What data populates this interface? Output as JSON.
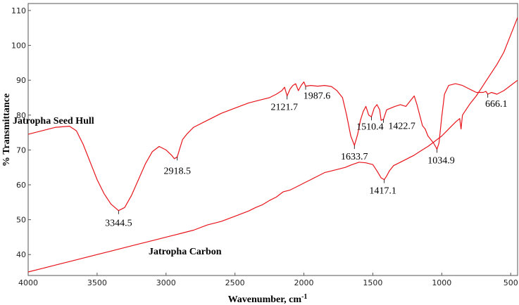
{
  "chart_data": {
    "type": "line",
    "title": "",
    "xlabel": "Wavenumber, cm",
    "xlabel_superscript": "-1",
    "ylabel": "% Transmittance",
    "xlim": [
      4000,
      450
    ],
    "ylim": [
      34,
      112
    ],
    "x_ticks": [
      "4000",
      "3500",
      "3000",
      "2500",
      "2000",
      "1500",
      "1000",
      "500"
    ],
    "y_ticks": [
      "40",
      "50",
      "60",
      "70",
      "80",
      "90",
      "100",
      "110"
    ],
    "grid": false,
    "legend": "none",
    "line_color": "#e8141b",
    "series": [
      {
        "name": "Jatropha Seed Hull",
        "x": [
          4000,
          3900,
          3800,
          3700,
          3650,
          3600,
          3550,
          3500,
          3450,
          3400,
          3370,
          3344.5,
          3300,
          3250,
          3200,
          3150,
          3100,
          3050,
          3000,
          2960,
          2940,
          2918.5,
          2900,
          2880,
          2850,
          2800,
          2700,
          2600,
          2500,
          2400,
          2300,
          2250,
          2200,
          2160,
          2140,
          2121.7,
          2100,
          2080,
          2060,
          2040,
          2020,
          2000,
          1987.6,
          1950,
          1900,
          1850,
          1800,
          1760,
          1720,
          1690,
          1660,
          1633.7,
          1610,
          1590,
          1570,
          1550,
          1530,
          1510.4,
          1490,
          1470,
          1450,
          1440,
          1422.7,
          1400,
          1370,
          1340,
          1300,
          1260,
          1230,
          1200,
          1180,
          1160,
          1140,
          1120,
          1100,
          1080,
          1060,
          1045,
          1034.9,
          1020,
          1000,
          980,
          950,
          900,
          850,
          800,
          750,
          700,
          680,
          666.1,
          640,
          600,
          550,
          500,
          450
        ],
        "y": [
          74.5,
          75.5,
          76.5,
          76.8,
          75.5,
          71.5,
          66.5,
          61.5,
          57.5,
          54.5,
          53.5,
          52.6,
          53.5,
          57,
          61.5,
          66,
          69.5,
          71,
          70,
          68.5,
          67.5,
          68,
          70.5,
          73,
          74.5,
          76.5,
          78.5,
          80.5,
          82,
          83.5,
          84.5,
          85,
          86,
          87,
          88,
          85.5,
          87.5,
          88.5,
          89,
          87,
          88.5,
          89.5,
          88.3,
          88.5,
          88.3,
          88.5,
          88.2,
          87,
          85,
          80,
          74,
          71.3,
          74.5,
          78.5,
          81,
          82.5,
          80,
          79.5,
          82,
          83,
          81.5,
          78.5,
          78.8,
          81.5,
          82,
          82.5,
          83,
          82.5,
          84,
          85.5,
          83,
          80,
          77,
          76,
          74,
          73,
          72,
          71,
          70.2,
          72,
          79.5,
          86,
          88.5,
          89,
          88.5,
          87.5,
          86.5,
          86.5,
          86.8,
          86,
          86.5,
          86,
          87,
          88.5,
          90
        ]
      },
      {
        "name": "Jatropha Carbon",
        "x": [
          4000,
          3900,
          3800,
          3700,
          3600,
          3500,
          3400,
          3300,
          3200,
          3100,
          3000,
          2900,
          2800,
          2700,
          2600,
          2500,
          2400,
          2350,
          2300,
          2250,
          2200,
          2150,
          2100,
          2050,
          2000,
          1950,
          1900,
          1850,
          1800,
          1750,
          1700,
          1650,
          1600,
          1550,
          1500,
          1470,
          1440,
          1417.1,
          1400,
          1380,
          1350,
          1300,
          1250,
          1200,
          1150,
          1100,
          1050,
          1000,
          950,
          900,
          870,
          860,
          850,
          800,
          750,
          700,
          650,
          600,
          550,
          500,
          450
        ],
        "y": [
          35,
          36,
          37,
          38,
          39,
          40,
          41,
          42,
          43,
          44,
          45,
          46,
          47,
          48.5,
          49.5,
          51,
          52.5,
          53.5,
          54.3,
          55.5,
          56.5,
          58,
          58.5,
          59.5,
          60.5,
          61.5,
          62.5,
          63.5,
          64,
          64.5,
          65,
          65.8,
          66.5,
          66.3,
          65.8,
          64,
          62,
          61.5,
          62.5,
          64,
          65.5,
          66.5,
          67.5,
          68.5,
          69.8,
          71,
          72.5,
          74,
          76,
          78,
          79,
          76,
          80,
          83,
          85.5,
          88.5,
          91.5,
          94.5,
          98,
          103,
          108
        ]
      }
    ],
    "annotations": [
      {
        "text": "3344.5",
        "x": 3344.5,
        "y": 52.6
      },
      {
        "text": "2918.5",
        "x": 2918.5,
        "y": 68
      },
      {
        "text": "2121.7",
        "x": 2121.7,
        "y": 85.5
      },
      {
        "text": "1987.6",
        "x": 1987.6,
        "y": 88.3
      },
      {
        "text": "1633.7",
        "x": 1633.7,
        "y": 71.3
      },
      {
        "text": "1510.4",
        "x": 1510.4,
        "y": 79.5
      },
      {
        "text": "1422.7",
        "x": 1422.7,
        "y": 78.8
      },
      {
        "text": "1034.9",
        "x": 1034.9,
        "y": 70.2
      },
      {
        "text": "666.1",
        "x": 666.1,
        "y": 86
      },
      {
        "text": "1417.1",
        "x": 1417.1,
        "y": 61.5
      }
    ]
  }
}
